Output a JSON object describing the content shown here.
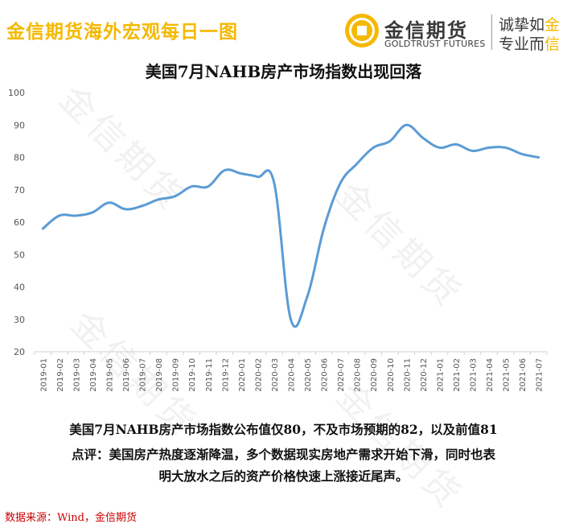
{
  "header": {
    "left_title": "金信期货海外宏观每日一图",
    "logo_cn": "金信期货",
    "logo_en": "GOLDTRUST FUTURES",
    "slogan_line1_a": "诚挚如",
    "slogan_line1_b": "金",
    "slogan_line2_a": "专业而",
    "slogan_line2_b": "信",
    "accent_color": "#F5B800"
  },
  "watermark": "金信期货",
  "chart_data": {
    "type": "line",
    "title": "美国7月NAHB房产市场指数出现回落",
    "xlabel": "",
    "ylabel": "",
    "ylim": [
      20,
      100
    ],
    "yticks": [
      20,
      30,
      40,
      50,
      60,
      70,
      80,
      90,
      100
    ],
    "grid": false,
    "line_color": "#5B9BD5",
    "x": [
      "2019-01",
      "2019-02",
      "2019-03",
      "2019-04",
      "2019-05",
      "2019-06",
      "2019-07",
      "2019-08",
      "2019-09",
      "2019-10",
      "2019-11",
      "2019-12",
      "2020-01",
      "2020-02",
      "2020-03",
      "2020-04",
      "2020-05",
      "2020-06",
      "2020-07",
      "2020-08",
      "2020-09",
      "2020-10",
      "2020-11",
      "2020-12",
      "2021-01",
      "2021-02",
      "2021-03",
      "2021-04",
      "2021-05",
      "2021-06",
      "2021-07"
    ],
    "values": [
      58,
      62,
      62,
      63,
      66,
      64,
      65,
      67,
      68,
      71,
      71,
      76,
      75,
      74,
      72,
      30,
      37,
      58,
      72,
      78,
      83,
      85,
      90,
      86,
      83,
      84,
      82,
      83,
      83,
      81,
      80
    ]
  },
  "notes": {
    "line1": "美国7月NAHB房产市场指数公布值仅80，不及市场预期的82，以及前值81",
    "line2": "点评：美国房产热度逐渐降温，多个数据现实房地产需求开始下滑，同时也表",
    "line3": "明大放水之后的资产价格快速上涨接近尾声。"
  },
  "source": "数据来源：Wind，金信期货"
}
